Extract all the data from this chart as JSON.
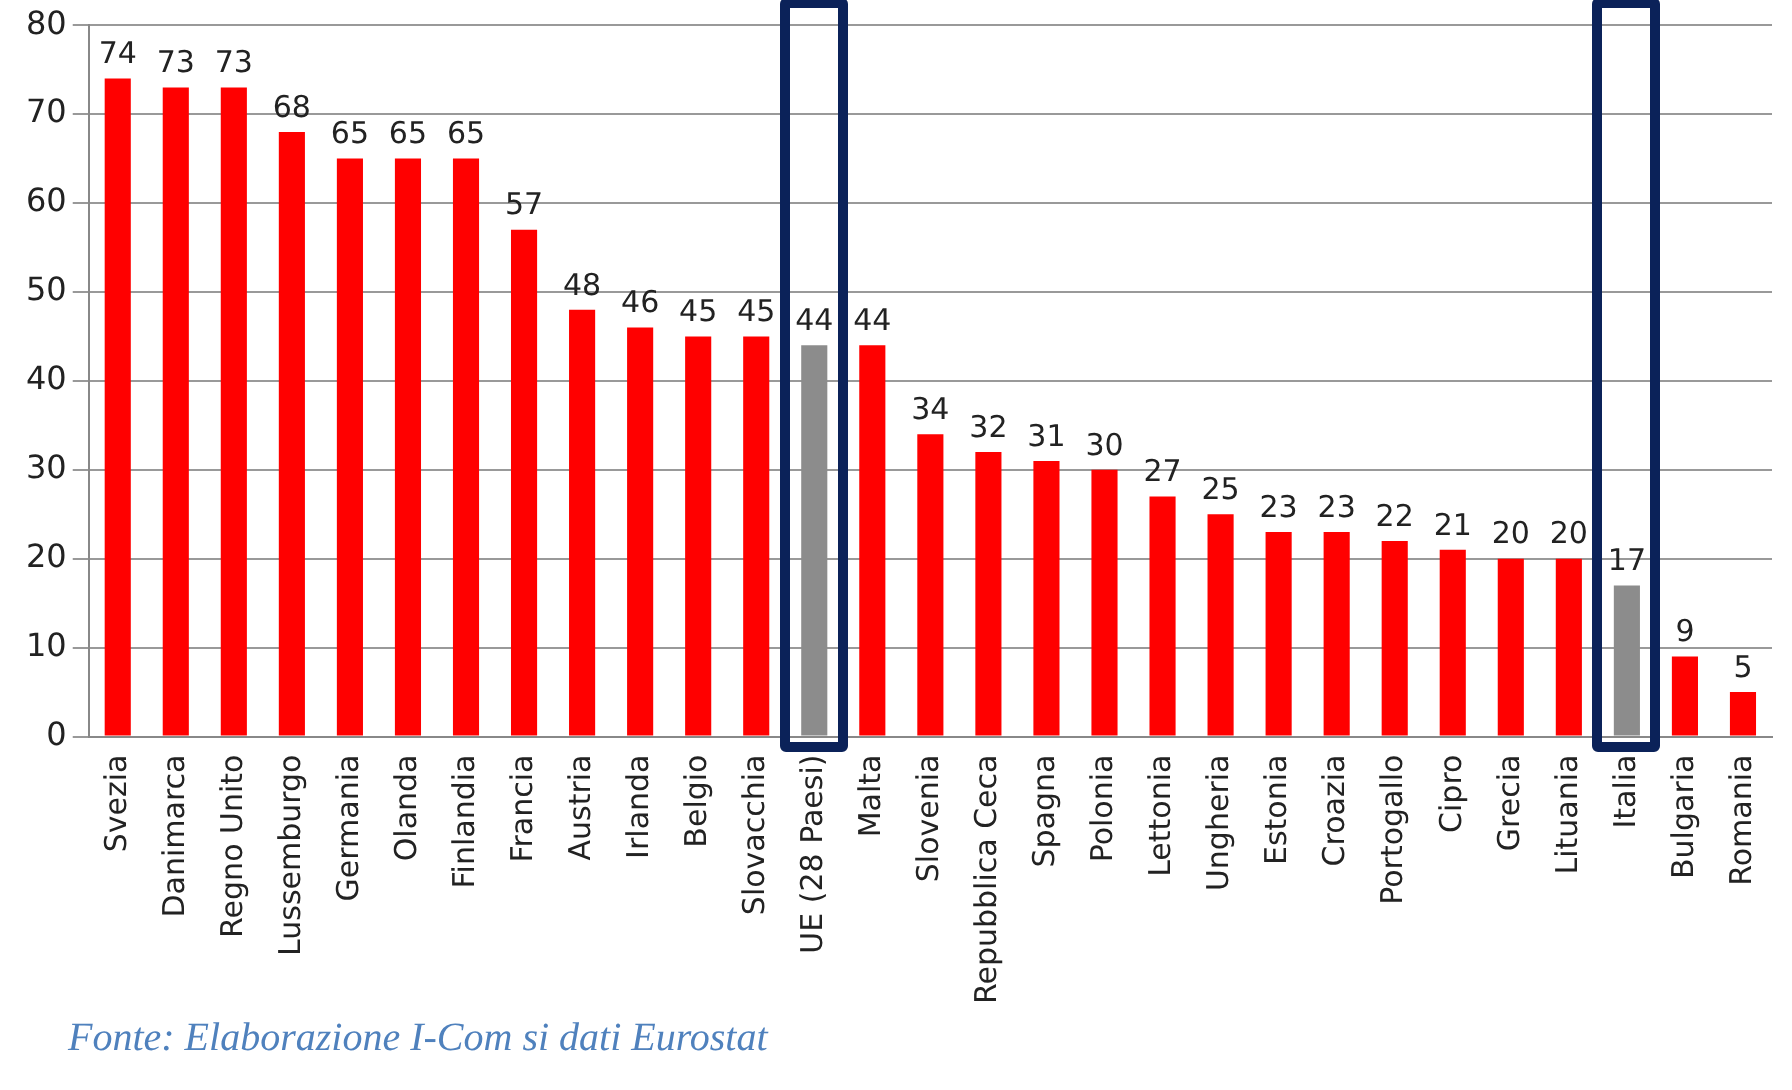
{
  "chart_data": {
    "type": "bar",
    "categories": [
      "Svezia",
      "Danimarca",
      "Regno Unito",
      "Lussemburgo",
      "Germania",
      "Olanda",
      "Finlandia",
      "Francia",
      "Austria",
      "Irlanda",
      "Belgio",
      "Slovacchia",
      "UE (28 Paesi)",
      "Malta",
      "Slovenia",
      "Repubblica Ceca",
      "Spagna",
      "Polonia",
      "Lettonia",
      "Ungheria",
      "Estonia",
      "Croazia",
      "Portogallo",
      "Cipro",
      "Grecia",
      "Lituania",
      "Italia",
      "Bulgaria",
      "Romania"
    ],
    "values": [
      74,
      73,
      73,
      68,
      65,
      65,
      65,
      57,
      48,
      46,
      45,
      45,
      44,
      44,
      34,
      32,
      31,
      30,
      27,
      25,
      23,
      23,
      22,
      21,
      20,
      20,
      17,
      9,
      5
    ],
    "colors": [
      "#ff0000",
      "#ff0000",
      "#ff0000",
      "#ff0000",
      "#ff0000",
      "#ff0000",
      "#ff0000",
      "#ff0000",
      "#ff0000",
      "#ff0000",
      "#ff0000",
      "#ff0000",
      "#8c8c8c",
      "#ff0000",
      "#ff0000",
      "#ff0000",
      "#ff0000",
      "#ff0000",
      "#ff0000",
      "#ff0000",
      "#ff0000",
      "#ff0000",
      "#ff0000",
      "#ff0000",
      "#ff0000",
      "#ff0000",
      "#8c8c8c",
      "#ff0000",
      "#ff0000"
    ],
    "ylim": [
      0,
      80
    ],
    "yticks": [
      0,
      10,
      20,
      30,
      40,
      50,
      60,
      70,
      80
    ],
    "grid": "y",
    "legend": false,
    "data_labels": true,
    "annotations": [
      "Fonte: Elaborazione I-Com si dati Eurostat"
    ]
  }
}
